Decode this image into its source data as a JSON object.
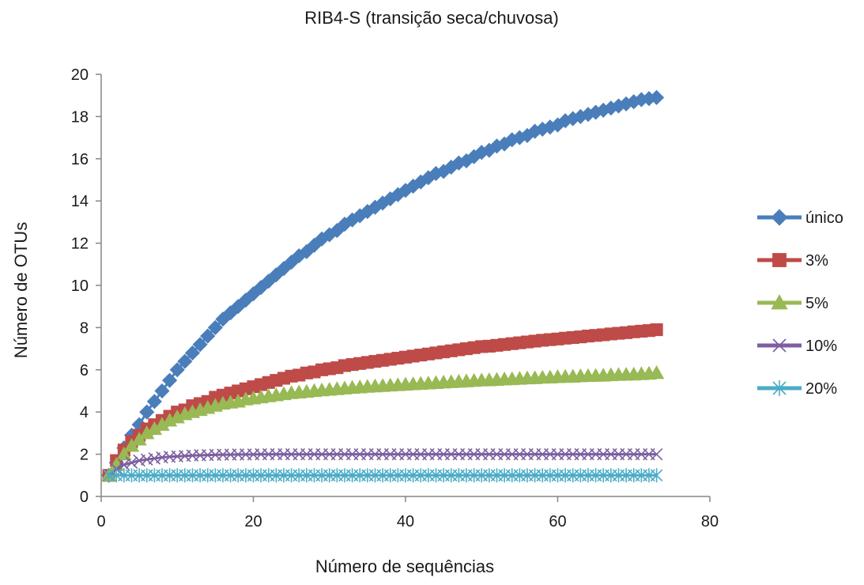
{
  "chart_data": {
    "type": "line",
    "title": "RIB4-S (transição seca/chuvosa)",
    "xlabel": "Número de sequências",
    "ylabel": "Número de OTUs",
    "xlim": [
      0,
      80
    ],
    "ylim": [
      0,
      20
    ],
    "xticks": [
      "0",
      "20",
      "40",
      "60",
      "80"
    ],
    "yticks": [
      "0",
      "2",
      "4",
      "6",
      "8",
      "10",
      "12",
      "14",
      "16",
      "18",
      "20"
    ],
    "grid": false,
    "legend_position": "right",
    "x": [
      1,
      2,
      3,
      4,
      5,
      6,
      7,
      8,
      9,
      10,
      11,
      12,
      13,
      14,
      15,
      16,
      17,
      18,
      19,
      20,
      21,
      22,
      23,
      24,
      25,
      26,
      27,
      28,
      29,
      30,
      31,
      32,
      33,
      34,
      35,
      36,
      37,
      38,
      39,
      40,
      41,
      42,
      43,
      44,
      45,
      46,
      47,
      48,
      49,
      50,
      51,
      52,
      53,
      54,
      55,
      56,
      57,
      58,
      59,
      60,
      61,
      62,
      63,
      64,
      65,
      66,
      67,
      68,
      69,
      70,
      71,
      72,
      73
    ],
    "series": [
      {
        "name": "único",
        "color": "#4a7ebb",
        "marker": "diamond",
        "values": [
          1.0,
          1.6,
          2.3,
          2.9,
          3.4,
          4.0,
          4.5,
          5.0,
          5.5,
          6.0,
          6.4,
          6.8,
          7.2,
          7.6,
          8.0,
          8.4,
          8.7,
          9.0,
          9.3,
          9.6,
          9.9,
          10.2,
          10.5,
          10.8,
          11.1,
          11.4,
          11.6,
          11.9,
          12.2,
          12.4,
          12.6,
          12.9,
          13.1,
          13.3,
          13.5,
          13.7,
          13.9,
          14.1,
          14.3,
          14.5,
          14.7,
          14.9,
          15.1,
          15.3,
          15.4,
          15.6,
          15.8,
          15.9,
          16.1,
          16.3,
          16.4,
          16.6,
          16.7,
          16.9,
          17.0,
          17.1,
          17.3,
          17.4,
          17.5,
          17.6,
          17.8,
          17.9,
          18.0,
          18.1,
          18.2,
          18.3,
          18.4,
          18.5,
          18.6,
          18.7,
          18.8,
          18.85,
          18.9
        ]
      },
      {
        "name": "3%",
        "color": "#be4b48",
        "marker": "square",
        "values": [
          1.0,
          1.7,
          2.2,
          2.6,
          2.9,
          3.2,
          3.4,
          3.6,
          3.8,
          4.0,
          4.1,
          4.3,
          4.4,
          4.5,
          4.7,
          4.8,
          4.9,
          5.0,
          5.1,
          5.2,
          5.3,
          5.4,
          5.5,
          5.6,
          5.7,
          5.75,
          5.85,
          5.9,
          6.0,
          6.05,
          6.1,
          6.2,
          6.25,
          6.3,
          6.35,
          6.4,
          6.45,
          6.5,
          6.55,
          6.6,
          6.65,
          6.7,
          6.75,
          6.8,
          6.85,
          6.9,
          6.95,
          7.0,
          7.05,
          7.1,
          7.12,
          7.16,
          7.2,
          7.24,
          7.28,
          7.32,
          7.36,
          7.4,
          7.43,
          7.46,
          7.5,
          7.53,
          7.56,
          7.6,
          7.63,
          7.66,
          7.7,
          7.73,
          7.76,
          7.8,
          7.83,
          7.86,
          7.9
        ]
      },
      {
        "name": "5%",
        "color": "#98b954",
        "marker": "triangle",
        "values": [
          1.0,
          1.5,
          2.0,
          2.4,
          2.7,
          3.0,
          3.2,
          3.4,
          3.6,
          3.75,
          3.9,
          4.0,
          4.1,
          4.2,
          4.3,
          4.4,
          4.45,
          4.5,
          4.6,
          4.65,
          4.7,
          4.75,
          4.8,
          4.85,
          4.9,
          4.93,
          4.96,
          5.0,
          5.03,
          5.06,
          5.09,
          5.12,
          5.15,
          5.17,
          5.2,
          5.22,
          5.24,
          5.26,
          5.28,
          5.3,
          5.32,
          5.34,
          5.36,
          5.38,
          5.4,
          5.42,
          5.44,
          5.46,
          5.48,
          5.5,
          5.51,
          5.53,
          5.55,
          5.56,
          5.58,
          5.6,
          5.61,
          5.63,
          5.64,
          5.66,
          5.67,
          5.68,
          5.7,
          5.71,
          5.72,
          5.73,
          5.75,
          5.76,
          5.77,
          5.78,
          5.8,
          5.82,
          5.85
        ]
      },
      {
        "name": "10%",
        "color": "#7d5fa0",
        "marker": "x",
        "values": [
          1.0,
          1.3,
          1.5,
          1.6,
          1.7,
          1.75,
          1.8,
          1.85,
          1.88,
          1.9,
          1.92,
          1.94,
          1.95,
          1.96,
          1.97,
          1.98,
          1.98,
          1.99,
          1.99,
          1.99,
          2.0,
          2.0,
          2.0,
          2.0,
          2.0,
          2.0,
          2.0,
          2.0,
          2.0,
          2.0,
          2.0,
          2.0,
          2.0,
          2.0,
          2.0,
          2.0,
          2.0,
          2.0,
          2.0,
          2.0,
          2.0,
          2.0,
          2.0,
          2.0,
          2.0,
          2.0,
          2.0,
          2.0,
          2.0,
          2.0,
          2.0,
          2.0,
          2.0,
          2.0,
          2.0,
          2.0,
          2.0,
          2.0,
          2.0,
          2.0,
          2.0,
          2.0,
          2.0,
          2.0,
          2.0,
          2.0,
          2.0,
          2.0,
          2.0,
          2.0,
          2.0,
          2.0,
          2.0
        ]
      },
      {
        "name": "20%",
        "color": "#4bacc6",
        "marker": "asterisk",
        "values": [
          1.0,
          1.0,
          1.0,
          1.0,
          1.0,
          1.0,
          1.0,
          1.0,
          1.0,
          1.0,
          1.0,
          1.0,
          1.0,
          1.0,
          1.0,
          1.0,
          1.0,
          1.0,
          1.0,
          1.0,
          1.0,
          1.0,
          1.0,
          1.0,
          1.0,
          1.0,
          1.0,
          1.0,
          1.0,
          1.0,
          1.0,
          1.0,
          1.0,
          1.0,
          1.0,
          1.0,
          1.0,
          1.0,
          1.0,
          1.0,
          1.0,
          1.0,
          1.0,
          1.0,
          1.0,
          1.0,
          1.0,
          1.0,
          1.0,
          1.0,
          1.0,
          1.0,
          1.0,
          1.0,
          1.0,
          1.0,
          1.0,
          1.0,
          1.0,
          1.0,
          1.0,
          1.0,
          1.0,
          1.0,
          1.0,
          1.0,
          1.0,
          1.0,
          1.0,
          1.0,
          1.0,
          1.0,
          1.0
        ]
      }
    ]
  }
}
